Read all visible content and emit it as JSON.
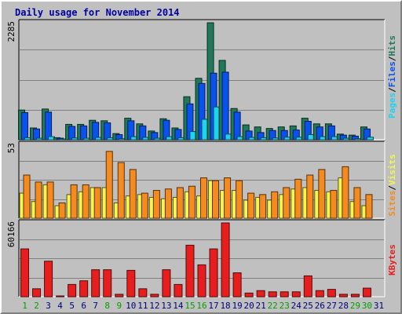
{
  "chart_data": {
    "type": "bar",
    "title": "Daily usage for November 2014",
    "categories": [
      "1",
      "2",
      "3",
      "4",
      "5",
      "6",
      "7",
      "8",
      "9",
      "10",
      "11",
      "12",
      "13",
      "14",
      "15",
      "16",
      "17",
      "18",
      "19",
      "20",
      "21",
      "22",
      "23",
      "24",
      "25",
      "26",
      "27",
      "28",
      "29",
      "30",
      "31"
    ],
    "weekend_days": [
      "1",
      "2",
      "8",
      "9",
      "15",
      "16",
      "22",
      "23",
      "29",
      "30"
    ],
    "panels": [
      {
        "id": "hits-files-pages",
        "ymax": 2285,
        "ymax_label": "2285",
        "legend": [
          "Pages",
          "/",
          "Files",
          "/",
          "Hits"
        ],
        "series": [
          {
            "name": "Hits",
            "color": "#1e7a5a",
            "values": [
              580,
              230,
              600,
              40,
              300,
              300,
              380,
              370,
              120,
              420,
              310,
              170,
              410,
              230,
              840,
              1200,
              2285,
              1550,
              610,
              290,
              250,
              220,
              250,
              270,
              420,
              310,
              310,
              110,
              90,
              250,
              0
            ]
          },
          {
            "name": "Files",
            "color": "#0a52f0",
            "values": [
              530,
              210,
              540,
              30,
              260,
              270,
              340,
              330,
              100,
              370,
              270,
              140,
              380,
              200,
              700,
              1100,
              1300,
              1320,
              540,
              170,
              140,
              180,
              180,
              190,
              360,
              250,
              270,
              90,
              70,
              210,
              0
            ]
          },
          {
            "name": "Pages",
            "color": "#1ed2f0",
            "values": [
              40,
              30,
              60,
              5,
              35,
              30,
              45,
              40,
              20,
              60,
              45,
              30,
              60,
              40,
              160,
              400,
              640,
              110,
              60,
              45,
              40,
              35,
              50,
              50,
              100,
              60,
              60,
              30,
              20,
              50,
              0
            ]
          }
        ]
      },
      {
        "id": "visits-sites",
        "ymax": 53,
        "ymax_label": "53",
        "legend": [
          "Sites",
          "/",
          "Visits"
        ],
        "series": [
          {
            "name": "Visits",
            "color": "#f5f54a",
            "values": [
              18,
              12,
              24,
              9,
              17,
              19,
              22,
              22,
              11,
              16,
              17,
              15,
              14,
              15,
              19,
              16,
              27,
              20,
              20,
              13,
              15,
              13,
              17,
              21,
              22,
              20,
              19,
              29,
              12,
              9,
              0
            ]
          },
          {
            "name": "Sites",
            "color": "#f58a1e",
            "values": [
              31,
              26,
              26,
              11,
              24,
              24,
              22,
              48,
              40,
              35,
              18,
              20,
              21,
              22,
              23,
              29,
              27,
              29,
              27,
              18,
              17,
              19,
              22,
              28,
              31,
              35,
              20,
              37,
              22,
              17,
              0
            ]
          }
        ]
      },
      {
        "id": "kbytes",
        "ymax": 60166,
        "ymax_label": "60166",
        "legend": [
          "KBytes"
        ],
        "series": [
          {
            "name": "KBytes",
            "color": "#e81e1e",
            "values": [
              39000,
              6500,
              29000,
              500,
              10000,
              13000,
              22000,
              22000,
              2000,
              21500,
              6500,
              2000,
              22000,
              10000,
              42000,
              26000,
              39000,
              60166,
              19500,
              3000,
              5000,
              4000,
              4000,
              4000,
              17000,
              5000,
              6000,
              2000,
              2000,
              7000,
              0
            ]
          }
        ]
      }
    ],
    "colors": {
      "title": "#0000a0",
      "weekday_label": "#000080",
      "weekend_label": "#00a000",
      "plot_bg": "#c0c0c0"
    }
  }
}
